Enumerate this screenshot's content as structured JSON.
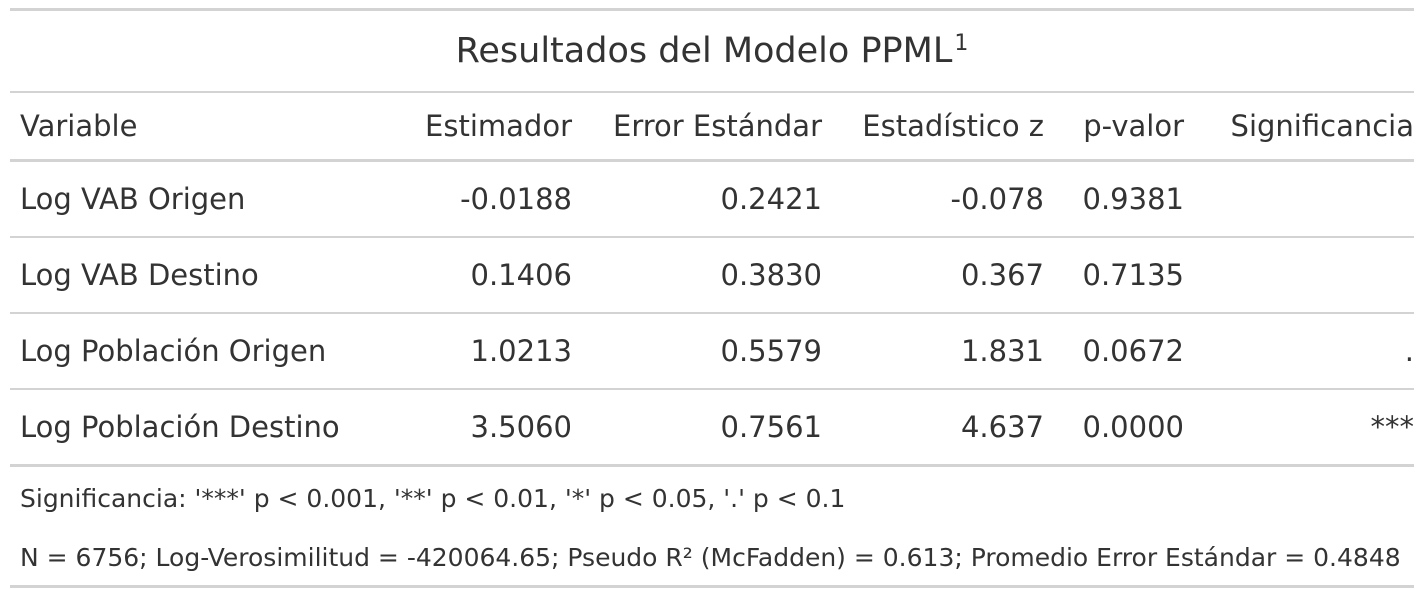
{
  "table": {
    "title": "Resultados del Modelo PPML",
    "title_footnote_mark": "1",
    "columns": [
      "Variable",
      "Estimador",
      "Error Estándar",
      "Estadístico z",
      "p-valor",
      "Significancia"
    ],
    "rows": [
      {
        "variable": "Log VAB Origen",
        "estimador": "-0.0188",
        "error": "0.2421",
        "z": "-0.078",
        "p": "0.9381",
        "sig": ""
      },
      {
        "variable": "Log VAB Destino",
        "estimador": "0.1406",
        "error": "0.3830",
        "z": "0.367",
        "p": "0.7135",
        "sig": ""
      },
      {
        "variable": "Log Población Origen",
        "estimador": "1.0213",
        "error": "0.5579",
        "z": "1.831",
        "p": "0.0672",
        "sig": "."
      },
      {
        "variable": "Log Población Destino",
        "estimador": "3.5060",
        "error": "0.7561",
        "z": "4.637",
        "p": "0.0000",
        "sig": "***"
      }
    ],
    "footnotes": [
      "Significancia: '***' p < 0.001, '**' p < 0.01, '*' p < 0.05, '.' p < 0.1",
      "N = 6756; Log-Verosimilitud = -420064.65; Pseudo R² (McFadden) = 0.613; Promedio Error Estándar = 0.4848"
    ]
  },
  "colors": {
    "text": "#333333",
    "rule": "#d3d3d3"
  }
}
